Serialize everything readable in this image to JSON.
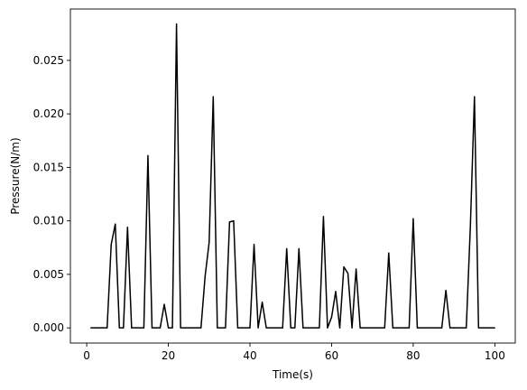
{
  "chart_data": {
    "type": "line",
    "title": "",
    "xlabel": "Time(s)",
    "ylabel": "Pressure(N/m)",
    "xlim": [
      -4,
      105
    ],
    "ylim": [
      -0.00142,
      0.0298
    ],
    "xticks": [
      0,
      20,
      40,
      60,
      80,
      100
    ],
    "xtick_labels": [
      "0",
      "20",
      "40",
      "60",
      "80",
      "100"
    ],
    "yticks": [
      0.0,
      0.005,
      0.01,
      0.015,
      0.02,
      0.025
    ],
    "ytick_labels": [
      "0.000",
      "0.005",
      "0.010",
      "0.015",
      "0.020",
      "0.025"
    ],
    "grid": false,
    "line_color": "#000000",
    "series": [
      {
        "x": [
          1,
          2,
          3,
          4,
          5,
          6,
          7,
          8,
          9,
          10,
          11,
          12,
          13,
          14,
          15,
          16,
          17,
          18,
          19,
          20,
          21,
          22,
          23,
          24,
          25,
          26,
          27,
          28,
          29,
          30,
          31,
          32,
          33,
          34,
          35,
          36,
          37,
          38,
          39,
          40,
          41,
          42,
          43,
          44,
          45,
          46,
          47,
          48,
          49,
          50,
          51,
          52,
          53,
          54,
          55,
          56,
          57,
          58,
          59,
          60,
          61,
          62,
          63,
          64,
          65,
          66,
          67,
          68,
          69,
          70,
          71,
          72,
          73,
          74,
          75,
          76,
          77,
          78,
          79,
          80,
          81,
          82,
          83,
          84,
          85,
          86,
          87,
          88,
          89,
          90,
          91,
          92,
          93,
          94,
          95,
          96,
          97,
          98,
          99,
          100
        ],
        "y": [
          0,
          0,
          0,
          0,
          0,
          0.0078,
          0.0097,
          0,
          0,
          0.0094,
          0,
          0,
          0,
          0,
          0.0161,
          0,
          0,
          0,
          0.0022,
          0,
          0,
          0.0284,
          0,
          0,
          0,
          0,
          0,
          0,
          0.0048,
          0.008,
          0.0216,
          0,
          0,
          0,
          0.0099,
          0.01,
          0,
          0,
          0,
          0,
          0.0078,
          0,
          0.0024,
          0,
          0,
          0,
          0,
          0,
          0.0074,
          0,
          0,
          0.0074,
          0,
          0,
          0,
          0,
          0,
          0.0104,
          0,
          0.001,
          0.0034,
          0,
          0.0057,
          0.0051,
          0,
          0.0055,
          0,
          0,
          0,
          0,
          0,
          0,
          0,
          0.007,
          0,
          0,
          0,
          0,
          0,
          0.0102,
          0,
          0,
          0,
          0,
          0,
          0,
          0,
          0.0035,
          0,
          0,
          0,
          0,
          0,
          0.0095,
          0.0216,
          0,
          0,
          0,
          0,
          0
        ]
      }
    ]
  }
}
